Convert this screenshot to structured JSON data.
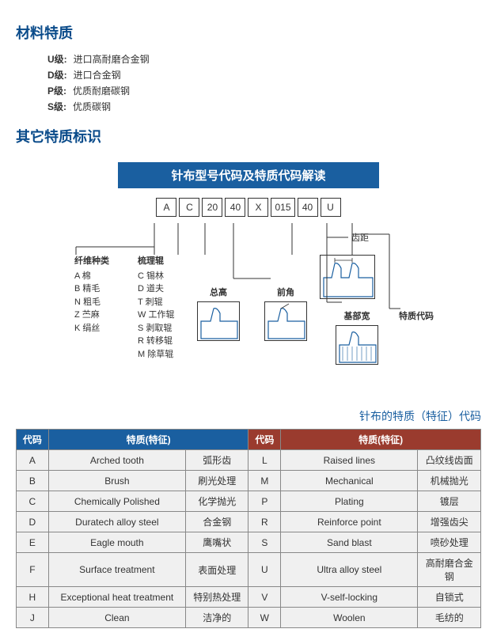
{
  "section1": {
    "title": "材料特质"
  },
  "grades": [
    {
      "label": "U级:",
      "desc": "进口高耐磨合金钢"
    },
    {
      "label": "D级:",
      "desc": "进口合金钢"
    },
    {
      "label": "P级:",
      "desc": "优质耐磨碳钢"
    },
    {
      "label": "S级:",
      "desc": "优质碳钢"
    }
  ],
  "section2": {
    "title": "其它特质标识"
  },
  "diagram": {
    "title": "针布型号代码及特质代码解读",
    "codes": [
      "A",
      "C",
      "20",
      "40",
      "X",
      "015",
      "40",
      "U"
    ],
    "fiber": {
      "hd": "纤维种类",
      "items": [
        "A 棉",
        "B 精毛",
        "N 粗毛",
        "Z 苎麻",
        "K 绢丝"
      ]
    },
    "roller": {
      "hd": "梳理辊",
      "items": [
        "C 锡林",
        "D 道夫",
        "T 刺辊",
        "W 工作辊",
        "S 剥取辊",
        "R 转移辊",
        "M 除草辊"
      ]
    },
    "lab_zonggao": "总高",
    "lab_qianjiao": "前角",
    "lab_chiju": "齿距",
    "lab_jibukuan": "基部宽",
    "lab_tezhi": "特质代码"
  },
  "table": {
    "title": "针布的特质（特征）代码",
    "headers": {
      "code": "代码",
      "trait": "特质(特征)"
    },
    "left": [
      {
        "c": "A",
        "en": "Arched tooth",
        "cn": "弧形齿"
      },
      {
        "c": "B",
        "en": "Brush",
        "cn": "刷光处理"
      },
      {
        "c": "C",
        "en": "Chemically Polished",
        "cn": "化学抛光"
      },
      {
        "c": "D",
        "en": "Duratech alloy steel",
        "cn": "合金钢"
      },
      {
        "c": "E",
        "en": "Eagle mouth",
        "cn": "鹰嘴状"
      },
      {
        "c": "F",
        "en": "Surface treatment",
        "cn": "表面处理"
      },
      {
        "c": "H",
        "en": "Exceptional heat treatment",
        "cn": "特别热处理"
      },
      {
        "c": "J",
        "en": "Clean",
        "cn": "洁净的"
      }
    ],
    "right": [
      {
        "c": "L",
        "en": "Raised lines",
        "cn": "凸纹线齿面"
      },
      {
        "c": "M",
        "en": "Mechanical",
        "cn": "机械抛光"
      },
      {
        "c": "P",
        "en": "Plating",
        "cn": "镀层"
      },
      {
        "c": "R",
        "en": "Reinforce point",
        "cn": "增强齿尖"
      },
      {
        "c": "S",
        "en": "Sand blast",
        "cn": "喷砂处理"
      },
      {
        "c": "U",
        "en": "Ultra alloy steel",
        "cn": "高耐磨合金钢"
      },
      {
        "c": "V",
        "en": "V-self-locking",
        "cn": "自锁式"
      },
      {
        "c": "W",
        "en": "Woolen",
        "cn": "毛纺的"
      }
    ]
  }
}
